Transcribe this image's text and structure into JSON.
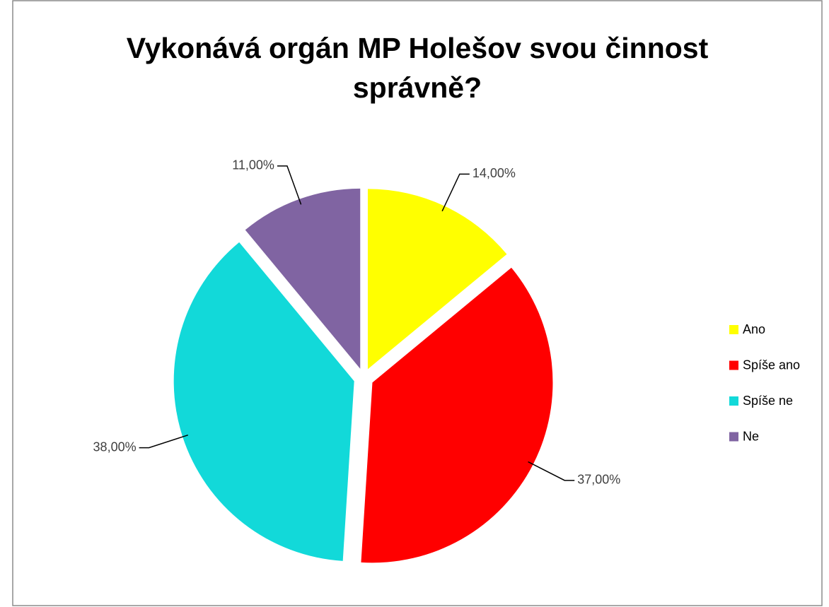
{
  "chart_data": {
    "type": "pie",
    "title": "Vykonává orgán MP Holešov svou činnost správně?",
    "categories": [
      "Ano",
      "Spíše ano",
      "Spíše ne",
      "Ne"
    ],
    "values": [
      14,
      37,
      38,
      11
    ],
    "value_labels": [
      "14,00%",
      "37,00%",
      "38,00%",
      "11,00%"
    ],
    "colors": [
      "#ffff00",
      "#ff0000",
      "#12d9d9",
      "#8064a2"
    ],
    "legend": "right"
  }
}
